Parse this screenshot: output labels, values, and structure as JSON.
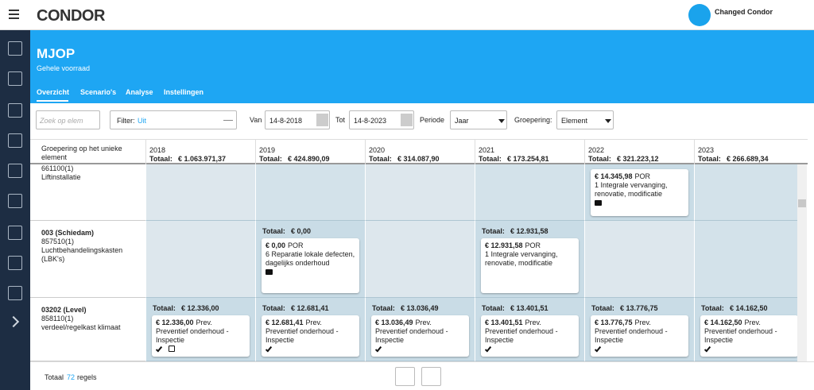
{
  "header": {
    "logo": "CONDOR",
    "user": "Changed Condor"
  },
  "banner": {
    "title": "MJOP",
    "subtitle": "Gehele voorraad",
    "tabs": [
      "Overzicht",
      "Scenario's",
      "Analyse",
      "Instellingen"
    ]
  },
  "filters": {
    "search_placeholder": "Zoek op elem",
    "filter_label": "Filter:",
    "filter_value": "Uit",
    "from_label": "Van",
    "from_date": "14-8-2018",
    "to_label": "Tot",
    "to_date": "14-8-2023",
    "period_label": "Periode",
    "period_value": "Jaar",
    "grouping_label": "Groepering:",
    "grouping_value": "Element"
  },
  "table": {
    "group_header": "Groepering op het unieke element",
    "total_label": "Totaal:",
    "columns": [
      {
        "year": "2018",
        "total": "€ 1.063.971,37"
      },
      {
        "year": "2019",
        "total": "€ 424.890,09"
      },
      {
        "year": "2020",
        "total": "€ 314.087,90"
      },
      {
        "year": "2021",
        "total": "€ 173.254,81"
      },
      {
        "year": "2022",
        "total": "€ 321.223,12"
      },
      {
        "year": "2023",
        "total": "€ 266.689,34"
      }
    ],
    "rows": [
      {
        "code": "661100(1)",
        "description": "Liftinstallatie",
        "cells": [
          null,
          null,
          null,
          null,
          {
            "card": {
              "amount": "€ 14.345,98",
              "type": "POR",
              "description": "1 Integrale vervanging, renovatie, modificatie"
            }
          },
          null
        ]
      },
      {
        "name": "003 (Schiedam)",
        "code": "857510(1)",
        "description": "Luchtbehandelingskasten (LBK's)",
        "cells": [
          null,
          {
            "total": "€ 0,00",
            "card": {
              "amount": "€ 0,00",
              "type": "POR",
              "description": "6 Reparatie lokale defecten, dagelijks onderhoud"
            }
          },
          null,
          {
            "total": "€ 12.931,58",
            "card": {
              "amount": "€ 12.931,58",
              "type": "POR",
              "description": "1 Integrale vervanging, renovatie, modificatie"
            }
          },
          null,
          null
        ]
      },
      {
        "name": "03202 (Level)",
        "code": "858110(1)",
        "description": "verdeel/regelkast klimaat",
        "cells": [
          {
            "total": "€ 12.336,00",
            "card": {
              "amount": "€ 12.336,00",
              "type": "Prev.",
              "description": "Preventief onderhoud - Inspectie"
            }
          },
          {
            "total": "€ 12.681,41",
            "card": {
              "amount": "€ 12.681,41",
              "type": "Prev.",
              "description": "Preventief onderhoud - Inspectie"
            }
          },
          {
            "total": "€ 13.036,49",
            "card": {
              "amount": "€ 13.036,49",
              "type": "Prev.",
              "description": "Preventief onderhoud - Inspectie"
            }
          },
          {
            "total": "€ 13.401,51",
            "card": {
              "amount": "€ 13.401,51",
              "type": "Prev.",
              "description": "Preventief onderhoud - Inspectie"
            }
          },
          {
            "total": "€ 13.776,75",
            "card": {
              "amount": "€ 13.776,75",
              "type": "Prev.",
              "description": "Preventief onderhoud - Inspectie"
            }
          },
          {
            "total": "€ 14.162,50",
            "card": {
              "amount": "€ 14.162,50",
              "type": "Prev.",
              "description": "Preventief onderhoud - Inspectie"
            }
          }
        ]
      }
    ]
  },
  "footer": {
    "total_label": "Totaal",
    "count": 72,
    "rows_label": "regels"
  }
}
